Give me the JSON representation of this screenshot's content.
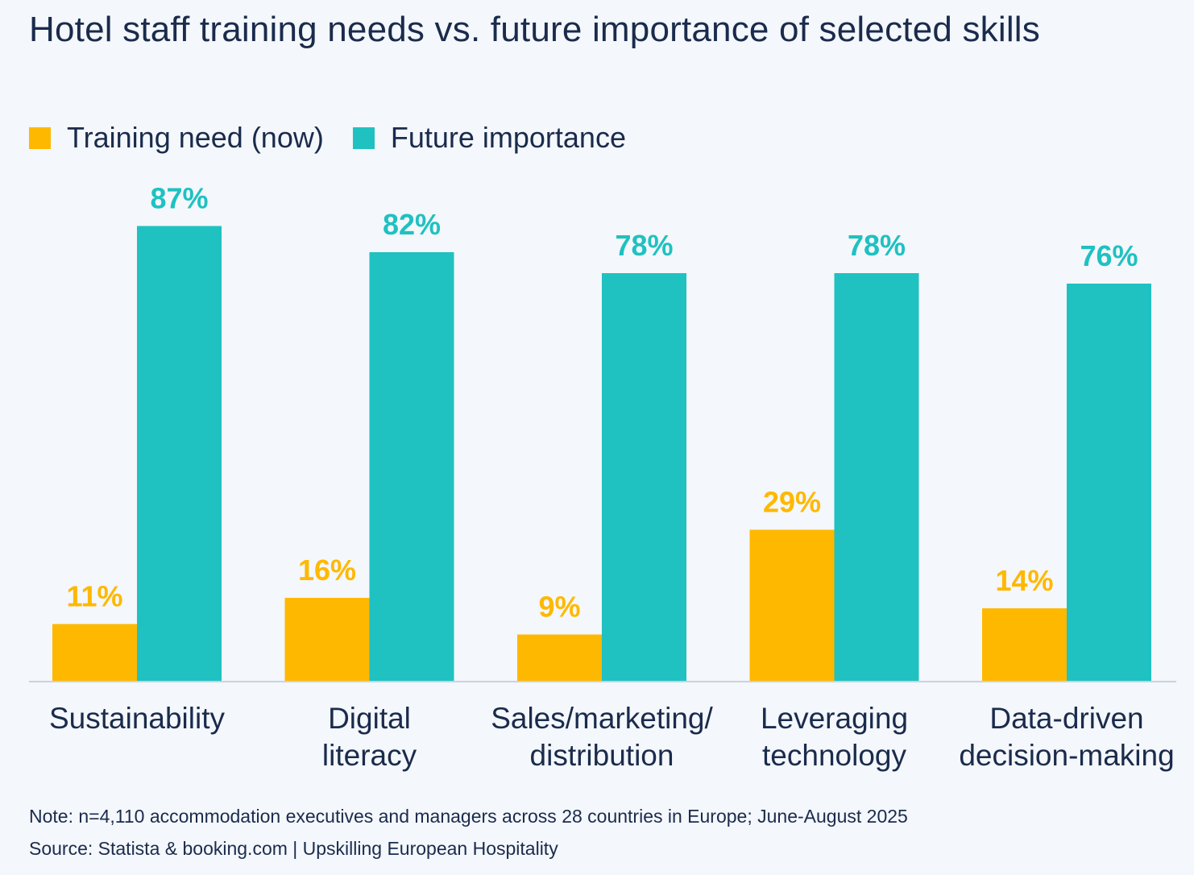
{
  "chart_data": {
    "type": "bar",
    "title": "Hotel staff training needs vs. future importance of selected skills",
    "categories": [
      [
        "Sustainability"
      ],
      [
        "Digital",
        "literacy"
      ],
      [
        "Sales/marketing/",
        "distribution"
      ],
      [
        "Leveraging",
        "technology"
      ],
      [
        "Data-driven",
        "decision-making"
      ]
    ],
    "series": [
      {
        "name": "Training need (now)",
        "color": "#ffb800",
        "values": [
          11,
          16,
          9,
          29,
          14
        ],
        "labels": [
          "11%",
          "16%",
          "9%",
          "29%",
          "14%"
        ]
      },
      {
        "name": "Future importance",
        "color": "#1fc1c1",
        "values": [
          87,
          82,
          78,
          78,
          76
        ],
        "labels": [
          "87%",
          "82%",
          "78%",
          "78%",
          "76%"
        ]
      }
    ],
    "ylim": [
      0,
      100
    ],
    "value_suffix": "%",
    "grid": false,
    "legend": "top-left"
  },
  "footer": {
    "note": "Note: n=4,110 accommodation executives and managers across 28 countries in Europe; June-August 2025",
    "source": "Source: Statista & booking.com | Upskilling European Hospitality"
  }
}
